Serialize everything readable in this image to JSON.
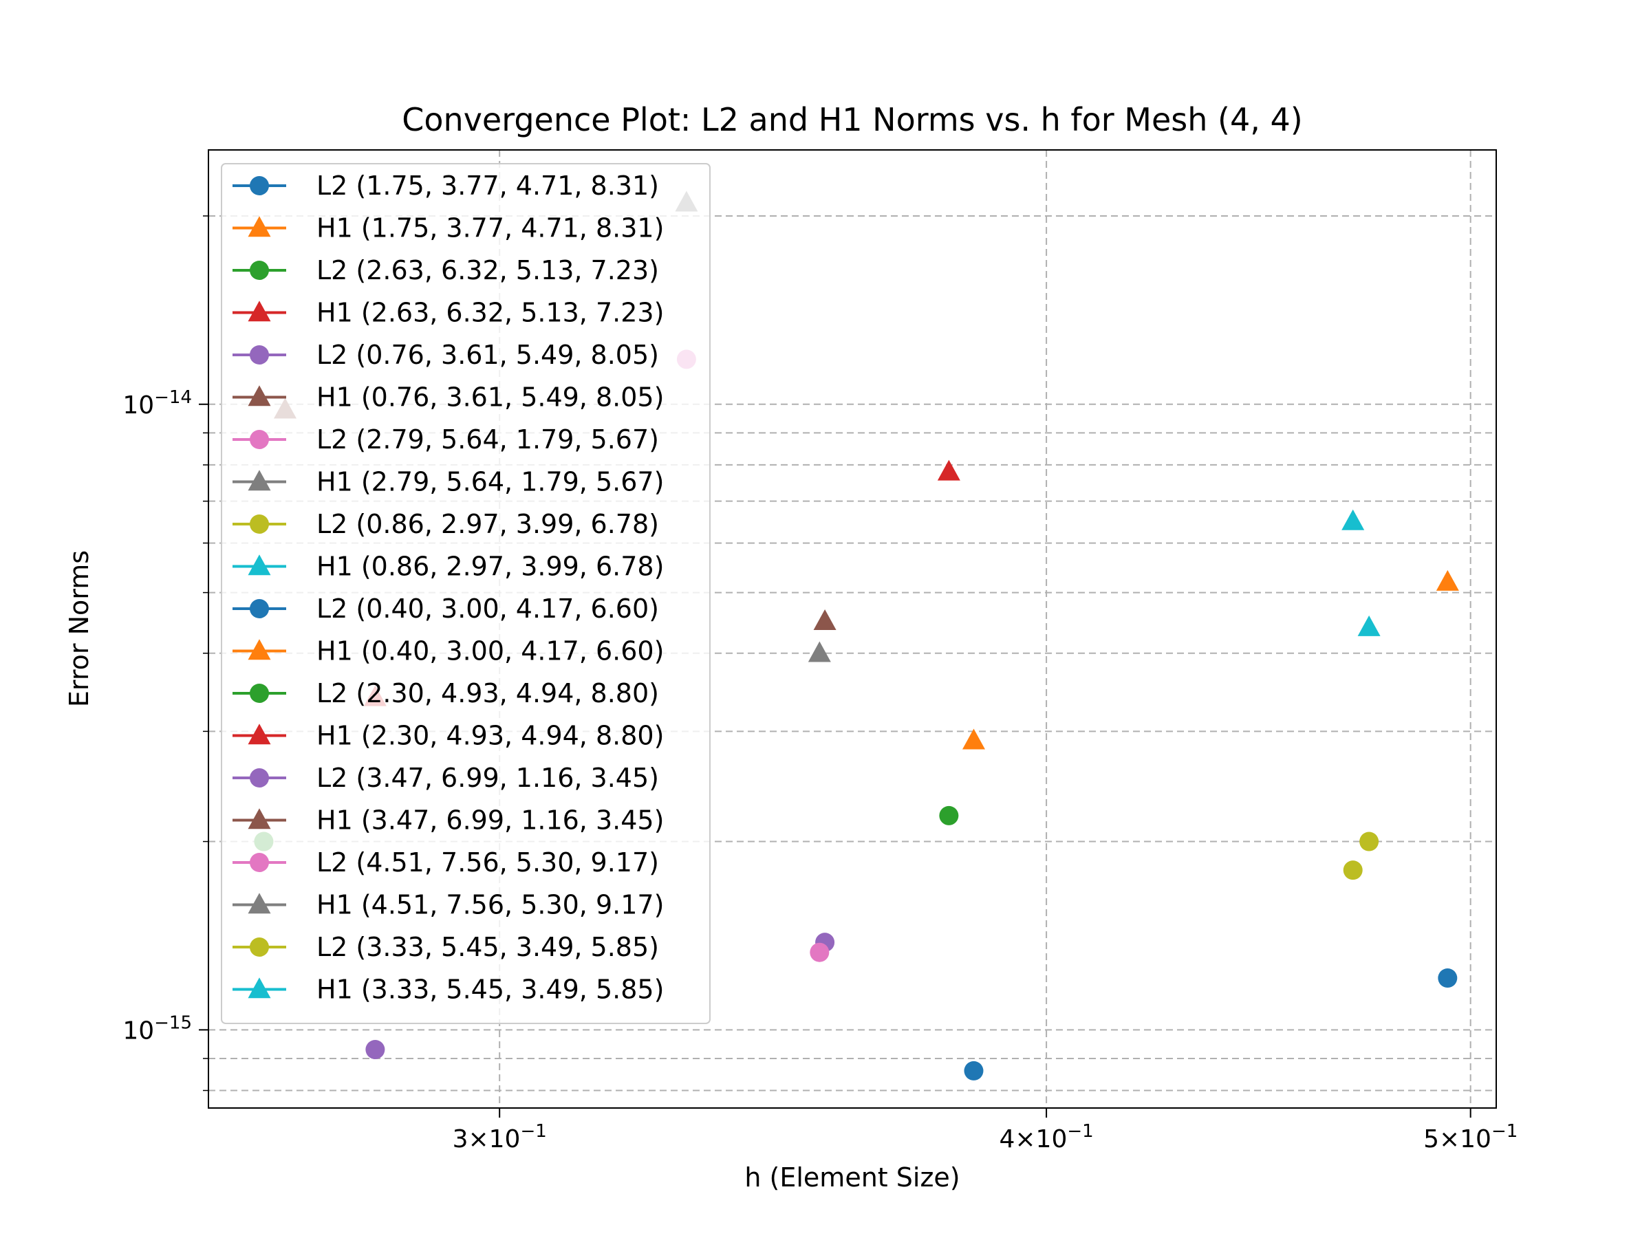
{
  "chart_data": {
    "type": "scatter",
    "title": "Convergence Plot: L2 and H1 Norms vs. h for Mesh (4, 4)",
    "xlabel": "h (Element Size)",
    "ylabel": "Error Norms",
    "xscale": "log",
    "yscale": "log",
    "xlim": [
      0.2574,
      0.5068
    ],
    "ylim": [
      7.5e-16,
      2.55e-14
    ],
    "grid": true,
    "legend_position": "upper-left",
    "x_ticks": [
      {
        "value": 0.3,
        "base": "3",
        "exp": "−1"
      },
      {
        "value": 0.4,
        "base": "4",
        "exp": "−1"
      },
      {
        "value": 0.5,
        "base": "5",
        "exp": "−1"
      }
    ],
    "y_ticks": [
      {
        "value": 1e-15,
        "exp": "−15"
      },
      {
        "value": 1e-14,
        "exp": "−14"
      }
    ],
    "series": [
      {
        "name": "L2 (1.75, 3.77, 4.71, 8.31)",
        "marker": "circle",
        "color": "#1f77b4",
        "points": [
          [
            0.385,
            8.6e-16
          ]
        ]
      },
      {
        "name": "H1 (1.75, 3.77, 4.71, 8.31)",
        "marker": "triangle",
        "color": "#ff7f0e",
        "points": [
          [
            0.385,
            2.9e-15
          ]
        ]
      },
      {
        "name": "L2 (2.63, 6.32, 5.13, 7.23)",
        "marker": "circle",
        "color": "#2ca02c",
        "points": [
          [
            0.38,
            2.2e-15
          ]
        ]
      },
      {
        "name": "H1 (2.63, 6.32, 5.13, 7.23)",
        "marker": "triangle",
        "color": "#d62728",
        "points": [
          [
            0.38,
            7.8e-15
          ]
        ]
      },
      {
        "name": "L2 (0.76, 3.61, 5.49, 8.05)",
        "marker": "circle",
        "color": "#9467bd",
        "points": [
          [
            0.281,
            9.3e-16
          ]
        ]
      },
      {
        "name": "H1 (0.76, 3.61, 5.49, 8.05)",
        "marker": "triangle",
        "color": "#8c564b",
        "points": [
          [
            0.268,
            9.8e-15
          ]
        ]
      },
      {
        "name": "L2 (2.79, 5.64, 1.79, 5.67)",
        "marker": "circle",
        "color": "#e377c2",
        "points": [
          [
            0.331,
            1.18e-14
          ]
        ]
      },
      {
        "name": "H1 (2.79, 5.64, 1.79, 5.67)",
        "marker": "triangle",
        "color": "#7f7f7f",
        "points": [
          [
            0.331,
            2.1e-14
          ]
        ]
      },
      {
        "name": "L2 (0.86, 2.97, 3.99, 6.78)",
        "marker": "circle",
        "color": "#bcbd22",
        "points": [
          [
            0.265,
            2e-15
          ]
        ]
      },
      {
        "name": "H1 (0.86, 2.97, 3.99, 6.78)",
        "marker": "triangle",
        "color": "#17becf",
        "points": [
          [
            0.47,
            6.5e-15
          ]
        ]
      },
      {
        "name": "L2 (0.40, 3.00, 4.17, 6.60)",
        "marker": "circle",
        "color": "#1f77b4",
        "points": [
          [
            0.494,
            1.21e-15
          ]
        ]
      },
      {
        "name": "H1 (0.40, 3.00, 4.17, 6.60)",
        "marker": "triangle",
        "color": "#ff7f0e",
        "points": [
          [
            0.494,
            5.2e-15
          ]
        ]
      },
      {
        "name": "L2 (2.30, 4.93, 4.94, 8.80)",
        "marker": "circle",
        "color": "#2ca02c",
        "points": [
          [
            0.265,
            2e-15
          ]
        ]
      },
      {
        "name": "H1 (2.30, 4.93, 4.94, 8.80)",
        "marker": "triangle",
        "color": "#d62728",
        "points": [
          [
            0.281,
            3.4e-15
          ]
        ]
      },
      {
        "name": "L2 (3.47, 6.99, 1.16, 3.45)",
        "marker": "circle",
        "color": "#9467bd",
        "points": [
          [
            0.356,
            1.38e-15
          ]
        ]
      },
      {
        "name": "H1 (3.47, 6.99, 1.16, 3.45)",
        "marker": "triangle",
        "color": "#8c564b",
        "points": [
          [
            0.356,
            4.5e-15
          ]
        ]
      },
      {
        "name": "L2 (4.51, 7.56, 5.30, 9.17)",
        "marker": "circle",
        "color": "#e377c2",
        "points": [
          [
            0.355,
            1.33e-15
          ]
        ]
      },
      {
        "name": "H1 (4.51, 7.56, 5.30, 9.17)",
        "marker": "triangle",
        "color": "#7f7f7f",
        "points": [
          [
            0.355,
            4e-15
          ]
        ]
      },
      {
        "name": "L2 (3.33, 5.45, 3.49, 5.85)",
        "marker": "circle",
        "color": "#bcbd22",
        "points": [
          [
            0.47,
            1.8e-15
          ],
          [
            0.474,
            2e-15
          ]
        ]
      },
      {
        "name": "H1 (3.33, 5.45, 3.49, 5.85)",
        "marker": "triangle",
        "color": "#17becf",
        "points": [
          [
            0.474,
            4.4e-15
          ]
        ]
      }
    ]
  }
}
